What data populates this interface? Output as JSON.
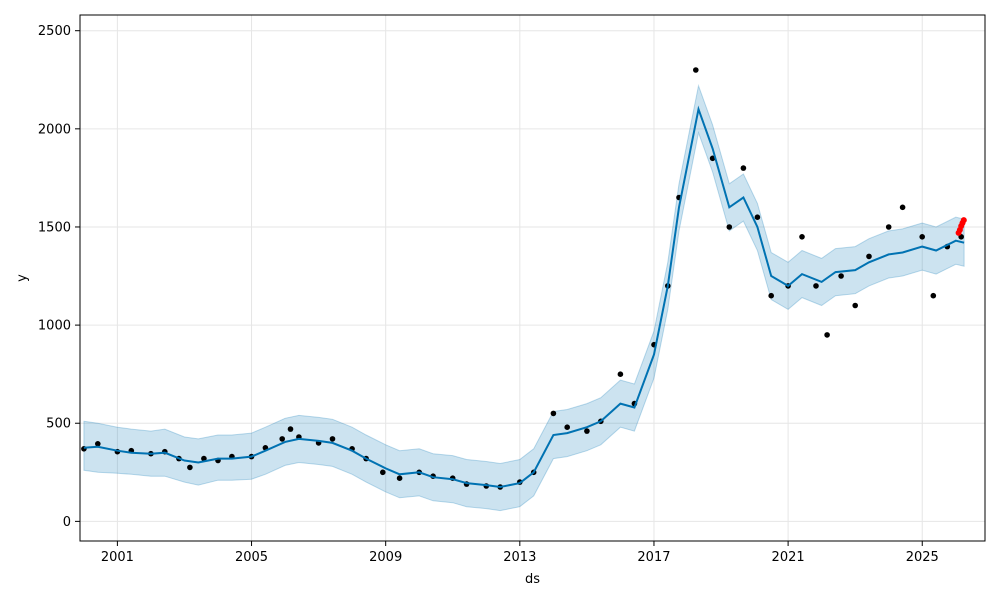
{
  "chart_data": {
    "type": "scatter",
    "title": "",
    "xlabel": "ds",
    "ylabel": "y",
    "xlim": [
      "1999-11-20",
      "2026-11-15"
    ],
    "ylim": [
      -100,
      2580
    ],
    "grid": true,
    "x_ticks": [
      "2001",
      "2005",
      "2009",
      "2013",
      "2017",
      "2021",
      "2025"
    ],
    "y_ticks": [
      0,
      500,
      1000,
      1500,
      2000,
      2500
    ],
    "colors": {
      "observed": "#000000",
      "forecast_line": "#0072B2",
      "uncertainty_band": "#0072B2",
      "highlight": "#ff0000",
      "grid": "#e6e6e6"
    },
    "series": [
      {
        "type": "scatter",
        "points": [
          {
            "x": "2000-01-01",
            "y": 370
          },
          {
            "x": "2000-06-01",
            "y": 395
          },
          {
            "x": "2001-01-01",
            "y": 355
          },
          {
            "x": "2001-06-01",
            "y": 360
          },
          {
            "x": "2002-01-01",
            "y": 345
          },
          {
            "x": "2002-06-01",
            "y": 355
          },
          {
            "x": "2002-11-01",
            "y": 320
          },
          {
            "x": "2003-03-01",
            "y": 275
          },
          {
            "x": "2003-08-01",
            "y": 320
          },
          {
            "x": "2004-01-01",
            "y": 310
          },
          {
            "x": "2004-06-01",
            "y": 330
          },
          {
            "x": "2005-01-01",
            "y": 330
          },
          {
            "x": "2005-06-01",
            "y": 375
          },
          {
            "x": "2005-12-01",
            "y": 420
          },
          {
            "x": "2006-03-01",
            "y": 470
          },
          {
            "x": "2006-06-01",
            "y": 430
          },
          {
            "x": "2007-01-01",
            "y": 400
          },
          {
            "x": "2007-06-01",
            "y": 420
          },
          {
            "x": "2008-01-01",
            "y": 370
          },
          {
            "x": "2008-06-01",
            "y": 320
          },
          {
            "x": "2008-12-01",
            "y": 250
          },
          {
            "x": "2009-06-01",
            "y": 220
          },
          {
            "x": "2010-01-01",
            "y": 250
          },
          {
            "x": "2010-06-01",
            "y": 230
          },
          {
            "x": "2011-01-01",
            "y": 220
          },
          {
            "x": "2011-06-01",
            "y": 190
          },
          {
            "x": "2012-01-01",
            "y": 180
          },
          {
            "x": "2012-06-01",
            "y": 175
          },
          {
            "x": "2013-01-01",
            "y": 200
          },
          {
            "x": "2013-06-01",
            "y": 250
          },
          {
            "x": "2014-01-01",
            "y": 550
          },
          {
            "x": "2014-06-01",
            "y": 480
          },
          {
            "x": "2015-01-01",
            "y": 460
          },
          {
            "x": "2015-06-01",
            "y": 510
          },
          {
            "x": "2016-01-01",
            "y": 750
          },
          {
            "x": "2016-06-01",
            "y": 600
          },
          {
            "x": "2017-01-01",
            "y": 900
          },
          {
            "x": "2017-06-01",
            "y": 1200
          },
          {
            "x": "2017-10-01",
            "y": 1650
          },
          {
            "x": "2018-04-01",
            "y": 2300
          },
          {
            "x": "2018-10-01",
            "y": 1850
          },
          {
            "x": "2019-04-01",
            "y": 1500
          },
          {
            "x": "2019-09-01",
            "y": 1800
          },
          {
            "x": "2020-02-01",
            "y": 1550
          },
          {
            "x": "2020-07-01",
            "y": 1150
          },
          {
            "x": "2021-01-01",
            "y": 1200
          },
          {
            "x": "2021-06-01",
            "y": 1450
          },
          {
            "x": "2021-11-01",
            "y": 1200
          },
          {
            "x": "2022-03-01",
            "y": 950
          },
          {
            "x": "2022-08-01",
            "y": 1250
          },
          {
            "x": "2023-01-01",
            "y": 1100
          },
          {
            "x": "2023-06-01",
            "y": 1350
          },
          {
            "x": "2024-01-01",
            "y": 1500
          },
          {
            "x": "2024-06-01",
            "y": 1600
          },
          {
            "x": "2025-01-01",
            "y": 1450
          },
          {
            "x": "2025-05-01",
            "y": 1150
          },
          {
            "x": "2025-10-01",
            "y": 1400
          },
          {
            "x": "2026-03-01",
            "y": 1450
          }
        ]
      },
      {
        "type": "line",
        "points": [
          {
            "x": "2000-01-01",
            "y": 375
          },
          {
            "x": "2000-06-01",
            "y": 380
          },
          {
            "x": "2001-01-01",
            "y": 360
          },
          {
            "x": "2001-06-01",
            "y": 350
          },
          {
            "x": "2002-01-01",
            "y": 345
          },
          {
            "x": "2002-06-01",
            "y": 350
          },
          {
            "x": "2003-01-01",
            "y": 310
          },
          {
            "x": "2003-06-01",
            "y": 300
          },
          {
            "x": "2004-01-01",
            "y": 320
          },
          {
            "x": "2004-06-01",
            "y": 320
          },
          {
            "x": "2005-01-01",
            "y": 330
          },
          {
            "x": "2005-06-01",
            "y": 360
          },
          {
            "x": "2006-01-01",
            "y": 405
          },
          {
            "x": "2006-06-01",
            "y": 420
          },
          {
            "x": "2007-01-01",
            "y": 410
          },
          {
            "x": "2007-06-01",
            "y": 400
          },
          {
            "x": "2008-01-01",
            "y": 360
          },
          {
            "x": "2008-06-01",
            "y": 320
          },
          {
            "x": "2009-01-01",
            "y": 270
          },
          {
            "x": "2009-06-01",
            "y": 240
          },
          {
            "x": "2010-01-01",
            "y": 250
          },
          {
            "x": "2010-06-01",
            "y": 225
          },
          {
            "x": "2011-01-01",
            "y": 215
          },
          {
            "x": "2011-06-01",
            "y": 195
          },
          {
            "x": "2012-01-01",
            "y": 185
          },
          {
            "x": "2012-06-01",
            "y": 175
          },
          {
            "x": "2013-01-01",
            "y": 195
          },
          {
            "x": "2013-06-01",
            "y": 250
          },
          {
            "x": "2014-01-01",
            "y": 440
          },
          {
            "x": "2014-06-01",
            "y": 450
          },
          {
            "x": "2015-01-01",
            "y": 480
          },
          {
            "x": "2015-06-01",
            "y": 510
          },
          {
            "x": "2016-01-01",
            "y": 600
          },
          {
            "x": "2016-06-01",
            "y": 580
          },
          {
            "x": "2017-01-01",
            "y": 850
          },
          {
            "x": "2017-06-01",
            "y": 1200
          },
          {
            "x": "2017-10-01",
            "y": 1600
          },
          {
            "x": "2018-05-01",
            "y": 2100
          },
          {
            "x": "2018-10-01",
            "y": 1900
          },
          {
            "x": "2019-04-01",
            "y": 1600
          },
          {
            "x": "2019-09-01",
            "y": 1650
          },
          {
            "x": "2020-02-01",
            "y": 1500
          },
          {
            "x": "2020-07-01",
            "y": 1250
          },
          {
            "x": "2021-01-01",
            "y": 1200
          },
          {
            "x": "2021-06-01",
            "y": 1260
          },
          {
            "x": "2022-01-01",
            "y": 1220
          },
          {
            "x": "2022-06-01",
            "y": 1270
          },
          {
            "x": "2023-01-01",
            "y": 1280
          },
          {
            "x": "2023-06-01",
            "y": 1320
          },
          {
            "x": "2024-01-01",
            "y": 1360
          },
          {
            "x": "2024-06-01",
            "y": 1370
          },
          {
            "x": "2025-01-01",
            "y": 1400
          },
          {
            "x": "2025-06-01",
            "y": 1380
          },
          {
            "x": "2026-01-01",
            "y": 1430
          },
          {
            "x": "2026-04-01",
            "y": 1420
          }
        ]
      },
      {
        "type": "scatter",
        "points": [
          {
            "x": "2026-02-01",
            "y": 1470
          },
          {
            "x": "2026-02-15",
            "y": 1485
          },
          {
            "x": "2026-03-01",
            "y": 1505
          },
          {
            "x": "2026-03-15",
            "y": 1520
          },
          {
            "x": "2026-03-29",
            "y": 1535
          }
        ]
      }
    ],
    "uncertainty_band": [
      {
        "x": "2000-01-01",
        "lower": 260,
        "upper": 510
      },
      {
        "x": "2000-06-01",
        "lower": 250,
        "upper": 500
      },
      {
        "x": "2001-01-01",
        "lower": 245,
        "upper": 480
      },
      {
        "x": "2001-06-01",
        "lower": 240,
        "upper": 470
      },
      {
        "x": "2002-01-01",
        "lower": 230,
        "upper": 460
      },
      {
        "x": "2002-06-01",
        "lower": 230,
        "upper": 470
      },
      {
        "x": "2003-01-01",
        "lower": 200,
        "upper": 430
      },
      {
        "x": "2003-06-01",
        "lower": 185,
        "upper": 420
      },
      {
        "x": "2004-01-01",
        "lower": 210,
        "upper": 440
      },
      {
        "x": "2004-06-01",
        "lower": 210,
        "upper": 440
      },
      {
        "x": "2005-01-01",
        "lower": 215,
        "upper": 450
      },
      {
        "x": "2005-06-01",
        "lower": 240,
        "upper": 480
      },
      {
        "x": "2006-01-01",
        "lower": 285,
        "upper": 525
      },
      {
        "x": "2006-06-01",
        "lower": 300,
        "upper": 540
      },
      {
        "x": "2007-01-01",
        "lower": 290,
        "upper": 530
      },
      {
        "x": "2007-06-01",
        "lower": 280,
        "upper": 520
      },
      {
        "x": "2008-01-01",
        "lower": 240,
        "upper": 480
      },
      {
        "x": "2008-06-01",
        "lower": 200,
        "upper": 440
      },
      {
        "x": "2009-01-01",
        "lower": 150,
        "upper": 390
      },
      {
        "x": "2009-06-01",
        "lower": 120,
        "upper": 360
      },
      {
        "x": "2010-01-01",
        "lower": 130,
        "upper": 370
      },
      {
        "x": "2010-06-01",
        "lower": 105,
        "upper": 345
      },
      {
        "x": "2011-01-01",
        "lower": 95,
        "upper": 335
      },
      {
        "x": "2011-06-01",
        "lower": 75,
        "upper": 315
      },
      {
        "x": "2012-01-01",
        "lower": 65,
        "upper": 305
      },
      {
        "x": "2012-06-01",
        "lower": 55,
        "upper": 295
      },
      {
        "x": "2013-01-01",
        "lower": 75,
        "upper": 315
      },
      {
        "x": "2013-06-01",
        "lower": 130,
        "upper": 370
      },
      {
        "x": "2014-01-01",
        "lower": 320,
        "upper": 560
      },
      {
        "x": "2014-06-01",
        "lower": 330,
        "upper": 570
      },
      {
        "x": "2015-01-01",
        "lower": 360,
        "upper": 600
      },
      {
        "x": "2015-06-01",
        "lower": 390,
        "upper": 630
      },
      {
        "x": "2016-01-01",
        "lower": 480,
        "upper": 720
      },
      {
        "x": "2016-06-01",
        "lower": 460,
        "upper": 700
      },
      {
        "x": "2017-01-01",
        "lower": 730,
        "upper": 970
      },
      {
        "x": "2017-06-01",
        "lower": 1080,
        "upper": 1320
      },
      {
        "x": "2017-10-01",
        "lower": 1480,
        "upper": 1720
      },
      {
        "x": "2018-05-01",
        "lower": 1980,
        "upper": 2220
      },
      {
        "x": "2018-10-01",
        "lower": 1780,
        "upper": 2020
      },
      {
        "x": "2019-04-01",
        "lower": 1480,
        "upper": 1720
      },
      {
        "x": "2019-09-01",
        "lower": 1530,
        "upper": 1770
      },
      {
        "x": "2020-02-01",
        "lower": 1380,
        "upper": 1620
      },
      {
        "x": "2020-07-01",
        "lower": 1130,
        "upper": 1370
      },
      {
        "x": "2021-01-01",
        "lower": 1080,
        "upper": 1320
      },
      {
        "x": "2021-06-01",
        "lower": 1140,
        "upper": 1380
      },
      {
        "x": "2022-01-01",
        "lower": 1100,
        "upper": 1340
      },
      {
        "x": "2022-06-01",
        "lower": 1150,
        "upper": 1390
      },
      {
        "x": "2023-01-01",
        "lower": 1160,
        "upper": 1400
      },
      {
        "x": "2023-06-01",
        "lower": 1200,
        "upper": 1440
      },
      {
        "x": "2024-01-01",
        "lower": 1240,
        "upper": 1480
      },
      {
        "x": "2024-06-01",
        "lower": 1250,
        "upper": 1490
      },
      {
        "x": "2025-01-01",
        "lower": 1280,
        "upper": 1520
      },
      {
        "x": "2025-06-01",
        "lower": 1260,
        "upper": 1500
      },
      {
        "x": "2026-01-01",
        "lower": 1310,
        "upper": 1550
      },
      {
        "x": "2026-04-01",
        "lower": 1300,
        "upper": 1540
      }
    ]
  }
}
